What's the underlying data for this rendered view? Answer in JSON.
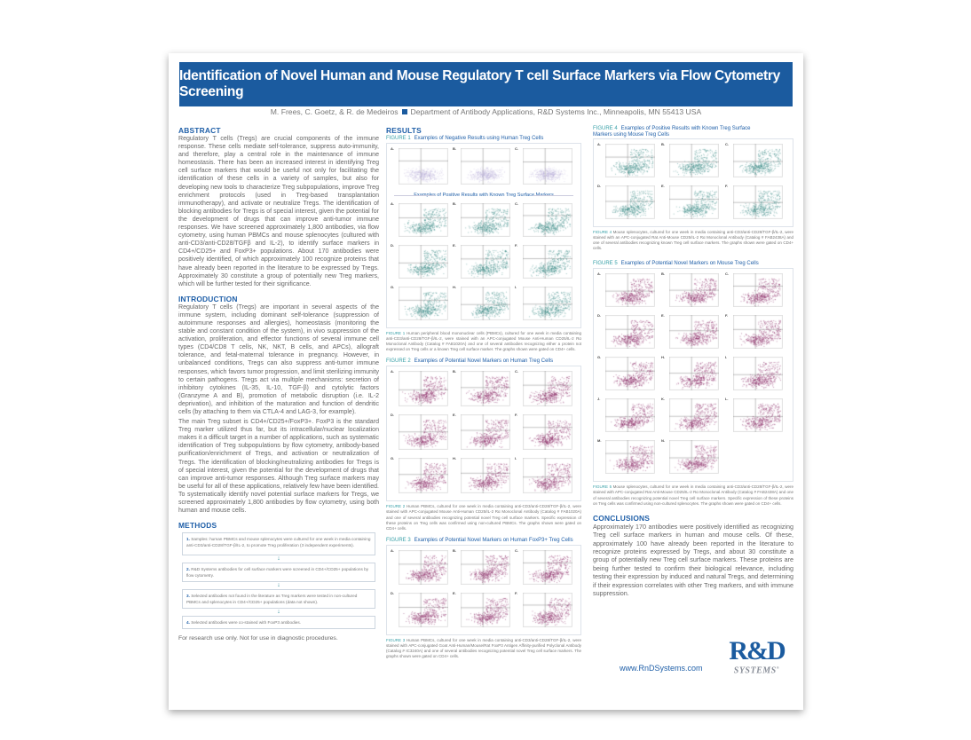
{
  "title": "Identification of Novel Human and Mouse Regulatory T cell Surface Markers via Flow Cytometry Screening",
  "authors": "M. Frees, C. Goetz, & R. de Medeiros",
  "affiliation": "Department of Antibody Applications, R&D Systems Inc., Minneapolis, MN 55413 USA",
  "colors": {
    "title_bar": "#1b5b9f",
    "heading": "#1f5fa8",
    "figure_label": "#39a0a8",
    "negative": "#b3a6d3",
    "positive_known": "#3a8a86",
    "novel": "#8b2a66"
  },
  "abstract": {
    "heading": "ABSTRACT",
    "text": "Regulatory T cells (Tregs) are crucial components of the immune response. These cells mediate self-tolerance, suppress auto-immunity, and therefore, play a central role in the maintenance of immune homeostasis. There has been an increased interest in identifying Treg cell surface markers that would be useful not only for facilitating the identification of these cells in a variety of samples, but also for developing new tools to characterize Treg subpopulations, improve Treg enrichment protocols (used in Treg-based transplantation immunotherapy), and activate or neutralize Tregs. The identification of blocking antibodies for Tregs is of special interest, given the potential for the development of drugs that can improve anti-tumor immune responses. We have screened approximately 1,800 antibodies, via flow cytometry, using human PBMCs and mouse splenocytes (cultured with anti-CD3/anti-CD28/TGFβ and IL-2), to identify surface markers in CD4+/CD25+ and FoxP3+ populations. About 170 antibodies were positively identified, of which approximately 100 recognize proteins that have already been reported in the literature to be expressed by Tregs. Approximately 30 constitute a group of potentially new Treg markers, which will be further tested for their significance."
  },
  "introduction": {
    "heading": "INTRODUCTION",
    "paragraphs": [
      "Regulatory T cells (Tregs) are important in several aspects of the immune system, including dominant self-tolerance (suppression of autoimmune responses and allergies), homeostasis (monitoring the stable and constant condition of the system), in vivo suppression of the activation, proliferation, and effector functions of several immune cell types (CD4/CD8 T cells, NK, NKT, B cells, and APCs), allograft tolerance, and fetal-maternal tolerance in pregnancy. However, in unbalanced conditions, Tregs can also suppress anti-tumor immune responses, which favors tumor progression, and limit sterilizing immunity to certain pathogens. Tregs act via multiple mechanisms: secretion of inhibitory cytokines (IL-35, IL-10, TGF-β) and cytolytic factors (Granzyme A and B), promotion of metabolic disruption (i.e. IL-2 deprivation), and inhibition of the maturation and function of dendritic cells (by attaching to them via CTLA-4 and LAG-3, for example).",
      "The main Treg subset is CD4+/CD25+/FoxP3+. FoxP3 is the standard Treg marker utilized thus far, but its intracellular/nuclear localization makes it a difficult target in a number of applications, such as systematic identification of Treg subpopulations by flow cytometry, antibody-based purification/enrichment of Tregs, and activation or neutralization of Tregs. The identification of blocking/neutralizing antibodies for Tregs is of special interest, given the potential for the development of drugs that can improve anti-tumor responses. Although Treg surface markers may be useful for all of these applications, relatively few have been identified. To systematically identify novel potential surface markers for Tregs, we screened approximately 1,800 antibodies by flow cytometry, using both human and mouse cells."
    ]
  },
  "methods": {
    "heading": "METHODS",
    "steps": [
      {
        "n": "1.",
        "text": "Samples: human PBMCs and mouse splenocytes were cultured for one week in media containing anti-CD3/anti-CD28/TGF-β/IL-2, to promote Treg proliferation (3 independent experiments)."
      },
      {
        "n": "2.",
        "text": "R&D Systems antibodies for cell surface markers were screened in CD4+/CD25+ populations by flow cytometry."
      },
      {
        "n": "3.",
        "text": "Selected antibodies not found in the literature as Treg markers were tested in non-cultured PBMCs and splenocytes in CD4+/CD25+ populations (data not shown)."
      },
      {
        "n": "4.",
        "text": "Selected antibodies were co-stained with FoxP3 antibodies."
      }
    ],
    "disclaimer": "For research use only. Not for use in diagnostic procedures."
  },
  "results": {
    "heading": "RESULTS"
  },
  "figures": {
    "fig1": {
      "label": "FIGURE 1",
      "title": "Examples of Negative Results using Human Treg Cells",
      "subheading": "Examples of Positive Results with Known Treg Surface Markers",
      "negative_panels": [
        "A.",
        "B.",
        "C."
      ],
      "positive_panels": [
        "A.",
        "B.",
        "C.",
        "D.",
        "E.",
        "F.",
        "G.",
        "H.",
        "I."
      ],
      "caption_label": "FIGURE 1",
      "caption": "Human peripheral blood mononuclear cells (PBMCs), cultured for one week in media containing anti-CD3/anti-CD28/TGF-β/IL-2, were stained with an APC-conjugated Mouse Anti-Human CD25/IL-2 Rα Monoclonal Antibody (Catalog # FAB1020A) and one of several antibodies recognizing either a protein not expressed on Treg cells or a known Treg cell surface marker. The graphs shown were gated on CD4+ cells."
    },
    "fig2": {
      "label": "FIGURE 2",
      "title": "Examples of Potential Novel Markers on Human Treg Cells",
      "panels": [
        "A.",
        "B.",
        "C.",
        "D.",
        "E.",
        "F.",
        "G.",
        "H.",
        "I."
      ],
      "caption_label": "FIGURE 2",
      "caption": "Human PBMCs, cultured for one week in media containing anti-CD3/anti-CD28/TGF-β/IL-2, were stained with APC-conjugated Mouse Anti-Human CD25/IL-2 Rα Monoclonal Antibody (Catalog # FAB1020A) and one of several antibodies recognizing potential novel Treg cell surface markers. Specific expression of these proteins on Treg cells was confirmed using non-cultured PBMCs. The graphs shown were gated on CD4+ cells."
    },
    "fig3": {
      "label": "FIGURE 3",
      "title": "Examples of Potential Novel Markers on Human FoxP3+ Treg Cells",
      "panels": [
        "A.",
        "B.",
        "C.",
        "D.",
        "E.",
        "F."
      ],
      "caption_label": "FIGURE 3",
      "caption": "Human PBMCs, cultured for one week in media containing anti-CD3/anti-CD28/TGF-β/IL-2, were stained with APC-conjugated Goat Anti-Human/Mouse/Rat FoxP3 Antigen Affinity-purified Polyclonal Antibody (Catalog # IC3240A) and one of several antibodies recognizing potential novel Treg cell surface markers. The graphs shown were gated on CD4+ cells."
    },
    "fig4": {
      "label": "FIGURE 4",
      "title": "Examples of Positive Results with Known Treg Surface Markers using Mouse Treg Cells",
      "panels": [
        "A.",
        "B.",
        "C.",
        "D.",
        "E.",
        "F."
      ],
      "caption_label": "FIGURE 4",
      "caption": "Mouse splenocytes, cultured for one week in media containing anti-CD3/anti-CD28/TGF-β/IL-2, were stained with an APC-conjugated Rat Anti-Mouse CD25/IL-2 Rα Monoclonal Antibody (Catalog # FAB2438A) and one of several antibodies recognizing known Treg cell surface markers. The graphs shown were gated on CD4+ cells."
    },
    "fig5": {
      "label": "FIGURE 5",
      "title": "Examples of Potential Novel Markers on Mouse Treg Cells",
      "panels": [
        "A.",
        "B.",
        "C.",
        "D.",
        "E.",
        "F.",
        "G.",
        "H.",
        "I.",
        "J.",
        "K.",
        "L.",
        "M.",
        "N."
      ],
      "caption_label": "FIGURE 5",
      "caption": "Mouse splenocytes, cultured for one week in media containing anti-CD3/anti-CD28/TGF-β/IL-2, were stained with APC-conjugated Rat Anti-Mouse CD25/IL-2 Rα Monoclonal Antibody (Catalog # FAB2438A) and one of several antibodies recognizing potential novel Treg cell surface markers. Specific expression of these proteins on Treg cells was confirmed using non-cultured splenocytes. The graphs shown were gated on CD4+ cells."
    }
  },
  "conclusions": {
    "heading": "CONCLUSIONS",
    "text": "Approximately 170 antibodies were positively identified as recognizing Treg cell surface markers in human and mouse cells. Of these, approximately 100 have already been reported in the literature to recognize proteins expressed by Tregs, and about 30 constitute a group of potentially new Treg cell surface markers. These proteins are being further tested to confirm their biological relevance, including testing their expression by induced and natural Tregs, and determining if their expression correlates with other Treg markers, and with immune suppression."
  },
  "footer": {
    "url": "www.RnDSystems.com",
    "logo_text": "R&D SYSTEMS®"
  }
}
